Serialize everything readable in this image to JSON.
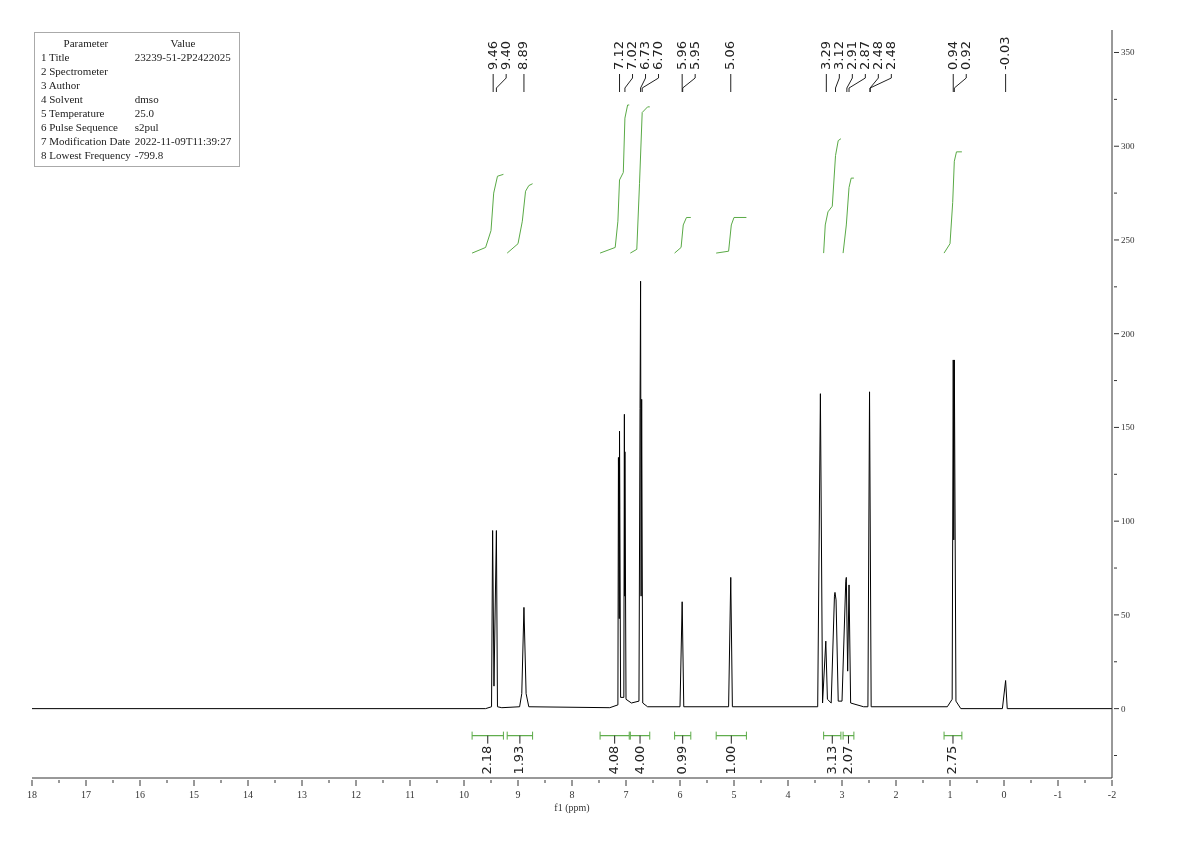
{
  "chart_data": {
    "type": "line",
    "xlabel": "f1 (ppm)",
    "xlim": [
      18,
      -2
    ],
    "xticks": [
      18,
      {
        "value": 17.5,
        "label": null
      },
      17,
      {
        "value": 16.5,
        "label": null
      },
      16,
      {
        "value": 15.5,
        "label": null
      },
      15,
      {
        "value": 14.5,
        "label": null
      },
      14,
      {
        "value": 13.5,
        "label": null
      },
      13,
      {
        "value": 12.5,
        "label": null
      },
      12,
      {
        "value": 11.5,
        "label": null
      },
      11,
      {
        "value": 10.5,
        "label": null
      },
      10,
      {
        "value": 9.5,
        "label": null
      },
      9,
      {
        "value": 8.5,
        "label": null
      },
      8,
      {
        "value": 7.5,
        "label": null
      },
      7,
      {
        "value": 6.5,
        "label": null
      },
      6,
      {
        "value": 5.5,
        "label": null
      },
      5,
      {
        "value": 4.5,
        "label": null
      },
      4,
      {
        "value": 3.5,
        "label": null
      },
      3,
      {
        "value": 2.5,
        "label": null
      },
      2,
      {
        "value": 1.5,
        "label": null
      },
      1,
      {
        "value": 0.5,
        "label": null
      },
      0,
      {
        "value": -0.5,
        "label": null
      },
      -1,
      {
        "value": -1.5,
        "label": null
      },
      -2
    ],
    "ylim": [
      -37,
      362
    ],
    "yticks": [
      {
        "value": -25,
        "label": null
      },
      0,
      {
        "value": 25,
        "label": null
      },
      50,
      {
        "value": 75,
        "label": null
      },
      100,
      {
        "value": 125,
        "label": null
      },
      150,
      {
        "value": 175,
        "label": null
      },
      200,
      {
        "value": 225,
        "label": null
      },
      250,
      {
        "value": 275,
        "label": null
      },
      300,
      {
        "value": 325,
        "label": null
      },
      350
    ],
    "series": [
      {
        "color": "#000000",
        "x": [
          18,
          9.6,
          9.49,
          9.47,
          9.445,
          9.4,
          9.38,
          9.3,
          8.97,
          8.93,
          8.89,
          8.85,
          8.8,
          7.3,
          7.15,
          7.14,
          7.125,
          7.12,
          7.1,
          7.04,
          7.03,
          7.025,
          7.02,
          7.0,
          6.9,
          6.76,
          6.74,
          6.73,
          6.72,
          6.71,
          6.69,
          6.6,
          6.0,
          5.96,
          5.93,
          5.1,
          5.06,
          5.03,
          3.45,
          3.4,
          3.36,
          3.3,
          3.27,
          3.2,
          3.14,
          3.13,
          3.11,
          3.07,
          3.0,
          2.93,
          2.92,
          2.895,
          2.87,
          2.84,
          2.6,
          2.52,
          2.49,
          2.46,
          1.05,
          0.96,
          0.94,
          0.93,
          0.92,
          0.89,
          0.8,
          0.03,
          -0.03,
          -0.06,
          -2
        ],
        "values": [
          0,
          0,
          1,
          95,
          12,
          95,
          1,
          0.5,
          1,
          8,
          54,
          8,
          1,
          0.5,
          2,
          134,
          48,
          148,
          6,
          6,
          157,
          60,
          137,
          5,
          3,
          4,
          160,
          228,
          60,
          165,
          3,
          1,
          1,
          57,
          1,
          1,
          70,
          1,
          1,
          168,
          3,
          36,
          5,
          3,
          60,
          62,
          58,
          4,
          4,
          68,
          70,
          20,
          66,
          3,
          1,
          1,
          169,
          1,
          1,
          5,
          186,
          90,
          186,
          4,
          0,
          0,
          15,
          0,
          0
        ]
      },
      {
        "color": "#5aaa46",
        "x": [
          9.85,
          9.6,
          9.5,
          9.45,
          9.38,
          9.27,
          9.25,
          9.2,
          9.0,
          8.92,
          8.86,
          8.8,
          8.73,
          8.0,
          7.48,
          7.2,
          7.15,
          7.12,
          7.05,
          7.02,
          6.97,
          6.94,
          6.93,
          6.92,
          6.8,
          6.75,
          6.7,
          6.6,
          6.56,
          6.3,
          6.1,
          5.98,
          5.94,
          5.88,
          5.8,
          5.5,
          5.33,
          5.1,
          5.05,
          5.0,
          4.77,
          4.0,
          3.34,
          3.31,
          3.26,
          3.18,
          3.12,
          3.07,
          3.02,
          3.01,
          2.98,
          2.92,
          2.87,
          2.83,
          2.78,
          2.0,
          1.11,
          1.0,
          0.95,
          0.92,
          0.88,
          0.78
        ],
        "values": [
          243,
          246,
          255,
          275,
          284,
          285,
          null,
          243,
          248,
          260,
          276,
          279,
          280,
          null,
          243,
          246,
          260,
          282,
          286,
          315,
          322,
          322,
          null,
          243,
          245,
          280,
          318,
          321,
          321,
          null,
          243,
          246,
          258,
          262,
          262,
          null,
          243,
          244,
          258,
          262,
          262,
          null,
          243,
          258,
          265,
          268,
          295,
          303,
          304,
          null,
          243,
          258,
          278,
          283,
          283,
          null,
          243,
          248,
          270,
          292,
          297,
          297
        ]
      }
    ],
    "annotations": [
      "Parameter\tValue",
      "1 Title\t23239-51-2P2422025",
      "2 Spectrometer",
      "3 Author",
      "4 Solvent\tdmso",
      "5 Temperature\t25.0",
      "6 Pulse Sequence\ts2pul",
      "7 Modification Date\t2022-11-09T11:39:27",
      "8 Lowest Frequency\t-799.8",
      {
        "text": "9.46",
        "x": 9.46
      },
      {
        "text": "9.40",
        "x": 9.4
      },
      {
        "text": "8.89",
        "x": 8.89
      },
      {
        "text": "7.12",
        "x": 7.12
      },
      {
        "text": "7.02",
        "x": 7.02
      },
      {
        "text": "6.73",
        "x": 6.73
      },
      {
        "text": "6.70",
        "x": 6.7
      },
      {
        "text": "5.96",
        "x": 5.96
      },
      {
        "text": "5.95",
        "x": 5.95
      },
      {
        "text": "5.06",
        "x": 5.06
      },
      {
        "text": "3.29",
        "x": 3.29
      },
      {
        "text": "3.12",
        "x": 3.12
      },
      {
        "text": "2.91",
        "x": 2.91
      },
      {
        "text": "2.87",
        "x": 2.87
      },
      {
        "text": "2.48",
        "x": 2.48
      },
      {
        "text": "2.48",
        "x": 2.48
      },
      {
        "text": "0.94",
        "x": 0.94
      },
      {
        "text": "0.92",
        "x": 0.92
      },
      {
        "text": "-0.03",
        "x": -0.03
      },
      "2.18",
      "1.93",
      "4.08",
      "4.00",
      "0.99",
      "1.00",
      "3.13",
      "2.07",
      "2.75"
    ]
  }
}
